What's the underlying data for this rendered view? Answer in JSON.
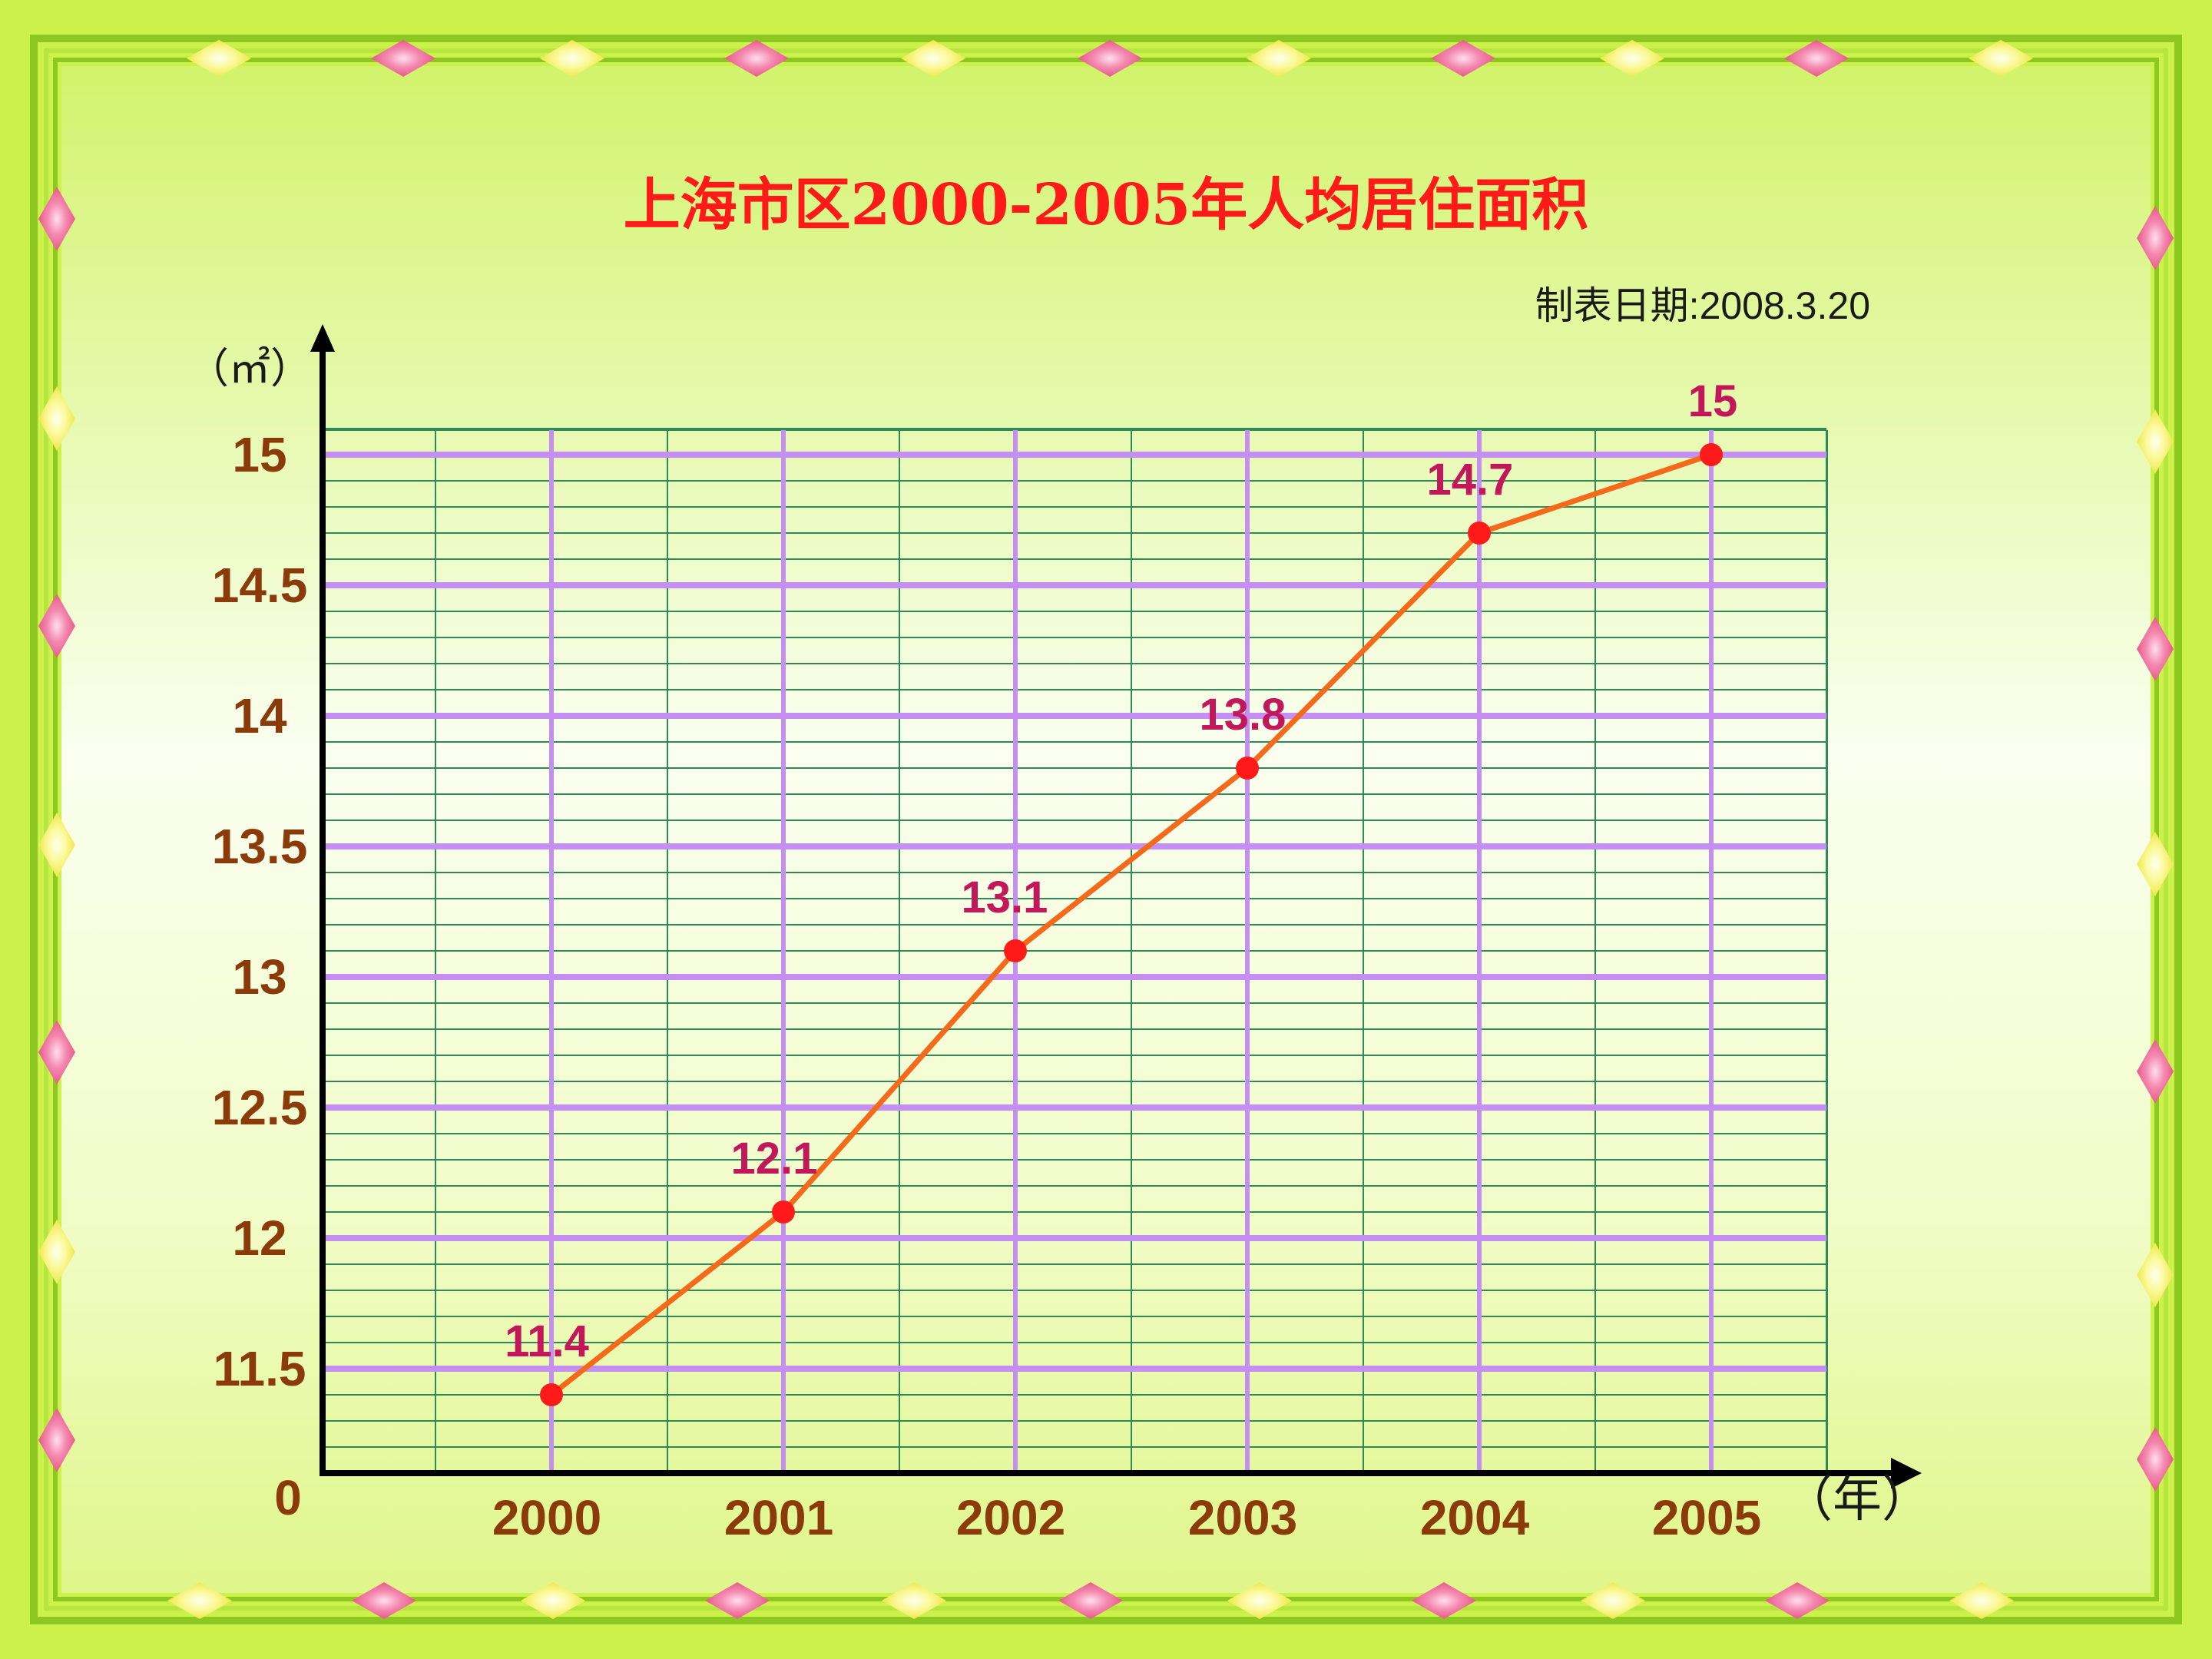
{
  "title": "上海市区2000-2005年人均居住面积",
  "date_label": "制表日期:2008.3.20",
  "colors": {
    "background_outer": "#ccf14a",
    "background_inner_top": "#d6f57a",
    "background_inner_mid": "#fbfff0",
    "frame_green": "#8cc820",
    "title": "#ff1a1a",
    "axis_labels": "#8b3a0a",
    "data_labels": "#c2185b",
    "line": "#f46a1a",
    "point": "#ff1a1a",
    "grid_major": "#c48ef2",
    "grid_minor": "#2e8b57",
    "diamond_pink": "#f06090",
    "diamond_yellow": "#f4f060"
  },
  "chart_data": {
    "type": "line",
    "title": "上海市区2000-2005年人均居住面积",
    "xlabel": "（年）",
    "ylabel": "（㎡）",
    "categories": [
      "2000",
      "2001",
      "2002",
      "2003",
      "2004",
      "2005"
    ],
    "series": [
      {
        "values": [
          11.4,
          12.1,
          13.1,
          13.8,
          14.7,
          15
        ]
      }
    ],
    "data_labels": [
      "11.4",
      "12.1",
      "13.1",
      "13.8",
      "14.7",
      "15"
    ],
    "y_ticks": [
      {
        "label": "15",
        "value": 15
      },
      {
        "label": "14.5",
        "value": 14.5
      },
      {
        "label": "14",
        "value": 14
      },
      {
        "label": "13.5",
        "value": 13.5
      },
      {
        "label": "13",
        "value": 13
      },
      {
        "label": "12.5",
        "value": 12.5
      },
      {
        "label": "12",
        "value": 12
      },
      {
        "label": "11.5",
        "value": 11.5
      }
    ],
    "y_origin_label": "0",
    "ylim": [
      11.1,
      15.1
    ],
    "axis_break": true,
    "grid": true,
    "minor_grid_step": 0.1
  }
}
